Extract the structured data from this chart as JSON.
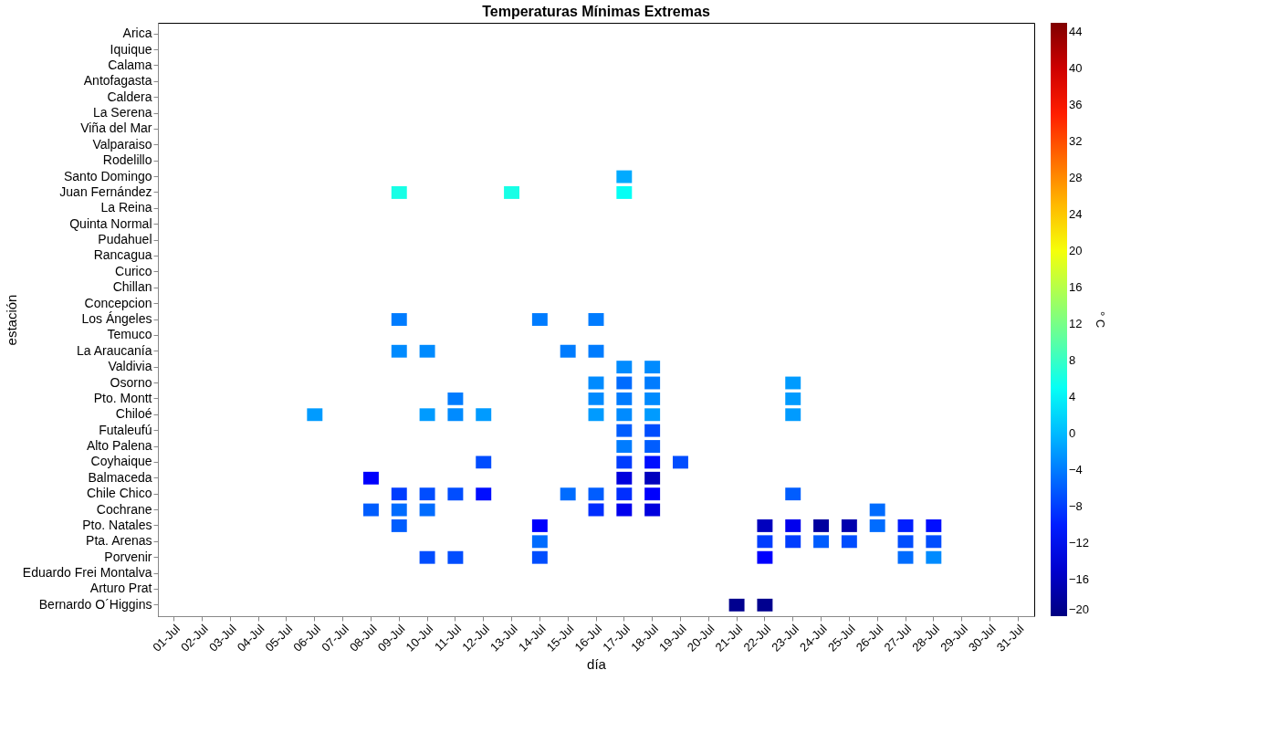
{
  "chart_data": {
    "type": "heatmap",
    "title": "Temperaturas Mínimas Extremas",
    "xlabel": "día",
    "ylabel": "estación",
    "clabel": "° C",
    "categories": [
      "01-Jul",
      "02-Jul",
      "03-Jul",
      "04-Jul",
      "05-Jul",
      "06-Jul",
      "07-Jul",
      "08-Jul",
      "09-Jul",
      "10-Jul",
      "11-Jul",
      "12-Jul",
      "13-Jul",
      "14-Jul",
      "15-Jul",
      "16-Jul",
      "17-Jul",
      "18-Jul",
      "19-Jul",
      "20-Jul",
      "21-Jul",
      "22-Jul",
      "23-Jul",
      "24-Jul",
      "25-Jul",
      "26-Jul",
      "27-Jul",
      "28-Jul",
      "29-Jul",
      "30-Jul",
      "31-Jul"
    ],
    "y_categories": [
      "Arica",
      "Iquique",
      "Calama",
      "Antofagasta",
      "Caldera",
      "La Serena",
      "Viña del Mar",
      "Valparaiso",
      "Rodelillo",
      "Santo Domingo",
      "Juan Fernández",
      "La Reina",
      "Quinta Normal",
      "Pudahuel",
      "Rancagua",
      "Curico",
      "Chillan",
      "Concepcion",
      "Los Ángeles",
      "Temuco",
      "La Araucanía",
      "Valdivia",
      "Osorno",
      "Pto. Montt",
      "Chiloé",
      "Futaleufú",
      "Alto Palena",
      "Coyhaique",
      "Balmaceda",
      "Chile Chico",
      "Cochrane",
      "Pto. Natales",
      "Pta. Arenas",
      "Porvenir",
      "Eduardo Frei Montalva",
      "Arturo Prat",
      "Bernardo O´Higgins"
    ],
    "cells": [
      [
        null,
        null,
        null,
        null,
        null,
        null,
        null,
        null,
        null,
        null,
        null,
        null,
        null,
        null,
        null,
        null,
        null,
        null,
        null,
        null,
        null,
        null,
        null,
        null,
        null,
        null,
        null,
        null,
        null,
        null,
        null
      ],
      [
        null,
        null,
        null,
        null,
        null,
        null,
        null,
        null,
        null,
        null,
        null,
        null,
        null,
        null,
        null,
        null,
        null,
        null,
        null,
        null,
        null,
        null,
        null,
        null,
        null,
        null,
        null,
        null,
        null,
        null,
        null
      ],
      [
        null,
        null,
        null,
        null,
        null,
        null,
        null,
        null,
        null,
        null,
        null,
        null,
        null,
        null,
        null,
        null,
        null,
        null,
        null,
        null,
        null,
        null,
        null,
        null,
        null,
        null,
        null,
        null,
        null,
        null,
        null
      ],
      [
        null,
        null,
        null,
        null,
        null,
        null,
        null,
        null,
        null,
        null,
        null,
        null,
        null,
        null,
        null,
        null,
        null,
        null,
        null,
        null,
        null,
        null,
        null,
        null,
        null,
        null,
        null,
        null,
        null,
        null,
        null
      ],
      [
        null,
        null,
        null,
        null,
        null,
        null,
        null,
        null,
        null,
        null,
        null,
        null,
        null,
        null,
        null,
        null,
        null,
        null,
        null,
        null,
        null,
        null,
        null,
        null,
        null,
        null,
        null,
        null,
        null,
        null,
        null
      ],
      [
        null,
        null,
        null,
        null,
        null,
        null,
        null,
        null,
        null,
        null,
        null,
        null,
        null,
        null,
        null,
        null,
        null,
        null,
        null,
        null,
        null,
        null,
        null,
        null,
        null,
        null,
        null,
        null,
        null,
        null,
        null
      ],
      [
        null,
        null,
        null,
        null,
        null,
        null,
        null,
        null,
        null,
        null,
        null,
        null,
        null,
        null,
        null,
        null,
        null,
        null,
        null,
        null,
        null,
        null,
        null,
        null,
        null,
        null,
        null,
        null,
        null,
        null,
        null
      ],
      [
        null,
        null,
        null,
        null,
        null,
        null,
        null,
        null,
        null,
        null,
        null,
        null,
        null,
        null,
        null,
        null,
        null,
        null,
        null,
        null,
        null,
        null,
        null,
        null,
        null,
        null,
        null,
        null,
        null,
        null,
        null
      ],
      [
        null,
        null,
        null,
        null,
        null,
        null,
        null,
        null,
        null,
        null,
        null,
        null,
        null,
        null,
        null,
        null,
        null,
        null,
        null,
        null,
        null,
        null,
        null,
        null,
        null,
        null,
        null,
        null,
        null,
        null,
        null
      ],
      [
        null,
        null,
        null,
        null,
        null,
        null,
        null,
        null,
        null,
        null,
        null,
        null,
        null,
        null,
        null,
        null,
        -1,
        null,
        null,
        null,
        null,
        null,
        null,
        null,
        null,
        null,
        null,
        null,
        null,
        null,
        null
      ],
      [
        null,
        null,
        null,
        null,
        null,
        null,
        null,
        null,
        6,
        null,
        null,
        null,
        6,
        null,
        null,
        null,
        5,
        null,
        null,
        null,
        null,
        null,
        null,
        null,
        null,
        null,
        null,
        null,
        null,
        null,
        null
      ],
      [
        null,
        null,
        null,
        null,
        null,
        null,
        null,
        null,
        null,
        null,
        null,
        null,
        null,
        null,
        null,
        null,
        null,
        null,
        null,
        null,
        null,
        null,
        null,
        null,
        null,
        null,
        null,
        null,
        null,
        null,
        null
      ],
      [
        null,
        null,
        null,
        null,
        null,
        null,
        null,
        null,
        null,
        null,
        null,
        null,
        null,
        null,
        null,
        null,
        null,
        null,
        null,
        null,
        null,
        null,
        null,
        null,
        null,
        null,
        null,
        null,
        null,
        null,
        null
      ],
      [
        null,
        null,
        null,
        null,
        null,
        null,
        null,
        null,
        null,
        null,
        null,
        null,
        null,
        null,
        null,
        null,
        null,
        null,
        null,
        null,
        null,
        null,
        null,
        null,
        null,
        null,
        null,
        null,
        null,
        null,
        null
      ],
      [
        null,
        null,
        null,
        null,
        null,
        null,
        null,
        null,
        null,
        null,
        null,
        null,
        null,
        null,
        null,
        null,
        null,
        null,
        null,
        null,
        null,
        null,
        null,
        null,
        null,
        null,
        null,
        null,
        null,
        null,
        null
      ],
      [
        null,
        null,
        null,
        null,
        null,
        null,
        null,
        null,
        null,
        null,
        null,
        null,
        null,
        null,
        null,
        null,
        null,
        null,
        null,
        null,
        null,
        null,
        null,
        null,
        null,
        null,
        null,
        null,
        null,
        null,
        null
      ],
      [
        null,
        null,
        null,
        null,
        null,
        null,
        null,
        null,
        null,
        null,
        null,
        null,
        null,
        null,
        null,
        null,
        null,
        null,
        null,
        null,
        null,
        null,
        null,
        null,
        null,
        null,
        null,
        null,
        null,
        null,
        null
      ],
      [
        null,
        null,
        null,
        null,
        null,
        null,
        null,
        null,
        null,
        null,
        null,
        null,
        null,
        null,
        null,
        null,
        null,
        null,
        null,
        null,
        null,
        null,
        null,
        null,
        null,
        null,
        null,
        null,
        null,
        null,
        null
      ],
      [
        null,
        null,
        null,
        null,
        null,
        null,
        null,
        null,
        -4,
        null,
        null,
        null,
        null,
        -4,
        null,
        -4,
        null,
        null,
        null,
        null,
        null,
        null,
        null,
        null,
        null,
        null,
        null,
        null,
        null,
        null,
        null
      ],
      [
        null,
        null,
        null,
        null,
        null,
        null,
        null,
        null,
        null,
        null,
        null,
        null,
        null,
        null,
        null,
        null,
        null,
        null,
        null,
        null,
        null,
        null,
        null,
        null,
        null,
        null,
        null,
        null,
        null,
        null,
        null
      ],
      [
        null,
        null,
        null,
        null,
        null,
        null,
        null,
        null,
        -3,
        -3,
        null,
        null,
        null,
        null,
        -4,
        -4,
        null,
        null,
        null,
        null,
        null,
        null,
        null,
        null,
        null,
        null,
        null,
        null,
        null,
        null,
        null
      ],
      [
        null,
        null,
        null,
        null,
        null,
        null,
        null,
        null,
        null,
        null,
        null,
        null,
        null,
        null,
        null,
        null,
        -3,
        -3,
        null,
        null,
        null,
        null,
        null,
        null,
        null,
        null,
        null,
        null,
        null,
        null,
        null
      ],
      [
        null,
        null,
        null,
        null,
        null,
        null,
        null,
        null,
        null,
        null,
        null,
        null,
        null,
        null,
        null,
        -3,
        -5,
        -4,
        null,
        null,
        null,
        null,
        -2,
        null,
        null,
        null,
        null,
        null,
        null,
        null,
        null
      ],
      [
        null,
        null,
        null,
        null,
        null,
        null,
        null,
        null,
        null,
        null,
        -4,
        null,
        null,
        null,
        null,
        -3,
        -4,
        -3,
        null,
        null,
        null,
        null,
        -2,
        null,
        null,
        null,
        null,
        null,
        null,
        null,
        null
      ],
      [
        null,
        null,
        null,
        null,
        null,
        -2,
        null,
        null,
        null,
        -2,
        -3,
        -2,
        null,
        null,
        null,
        -2,
        -3,
        -2,
        null,
        null,
        null,
        null,
        -2,
        null,
        null,
        null,
        null,
        null,
        null,
        null,
        null
      ],
      [
        null,
        null,
        null,
        null,
        null,
        null,
        null,
        null,
        null,
        null,
        null,
        null,
        null,
        null,
        null,
        null,
        -6,
        -7,
        null,
        null,
        null,
        null,
        null,
        null,
        null,
        null,
        null,
        null,
        null,
        null,
        null
      ],
      [
        null,
        null,
        null,
        null,
        null,
        null,
        null,
        null,
        null,
        null,
        null,
        null,
        null,
        null,
        null,
        null,
        -4,
        -6,
        null,
        null,
        null,
        null,
        null,
        null,
        null,
        null,
        null,
        null,
        null,
        null,
        null
      ],
      [
        null,
        null,
        null,
        null,
        null,
        null,
        null,
        null,
        null,
        null,
        null,
        -7,
        null,
        null,
        null,
        null,
        -8,
        -11,
        -7,
        null,
        null,
        null,
        null,
        null,
        null,
        null,
        null,
        null,
        null,
        null,
        null
      ],
      [
        null,
        null,
        null,
        null,
        null,
        null,
        null,
        -12,
        null,
        null,
        null,
        null,
        null,
        null,
        null,
        null,
        -14,
        -16,
        null,
        null,
        null,
        null,
        null,
        null,
        null,
        null,
        null,
        null,
        null,
        null,
        null
      ],
      [
        null,
        null,
        null,
        null,
        null,
        null,
        null,
        null,
        -8,
        -7,
        -7,
        -11,
        null,
        null,
        -5,
        -6,
        -9,
        -12,
        null,
        null,
        null,
        null,
        -6,
        null,
        null,
        null,
        null,
        null,
        null,
        null,
        null
      ],
      [
        null,
        null,
        null,
        null,
        null,
        null,
        null,
        -6,
        -5,
        -5,
        null,
        null,
        null,
        null,
        null,
        -9,
        -13,
        -14,
        null,
        null,
        null,
        null,
        null,
        null,
        null,
        -5,
        null,
        null,
        null,
        null,
        null
      ],
      [
        null,
        null,
        null,
        null,
        null,
        null,
        null,
        null,
        -6,
        null,
        null,
        null,
        null,
        -12,
        null,
        null,
        null,
        null,
        null,
        null,
        null,
        -16,
        -13,
        -18,
        -17,
        -5,
        -10,
        -11,
        null,
        null,
        null
      ],
      [
        null,
        null,
        null,
        null,
        null,
        null,
        null,
        null,
        null,
        null,
        null,
        null,
        null,
        -5,
        null,
        null,
        null,
        null,
        null,
        null,
        null,
        -8,
        -8,
        -6,
        -7,
        null,
        -7,
        -7,
        null,
        null,
        null
      ],
      [
        null,
        null,
        null,
        null,
        null,
        null,
        null,
        null,
        null,
        -7,
        -7,
        null,
        null,
        -7,
        null,
        null,
        null,
        null,
        null,
        null,
        null,
        -12,
        null,
        null,
        null,
        null,
        -5,
        -3,
        null,
        null,
        null
      ],
      [
        null,
        null,
        null,
        null,
        null,
        null,
        null,
        null,
        null,
        null,
        null,
        null,
        null,
        null,
        null,
        null,
        null,
        null,
        null,
        null,
        null,
        null,
        null,
        null,
        null,
        null,
        null,
        null,
        null,
        null,
        null
      ],
      [
        null,
        null,
        null,
        null,
        null,
        null,
        null,
        null,
        null,
        null,
        null,
        null,
        null,
        null,
        null,
        null,
        null,
        null,
        null,
        null,
        null,
        null,
        null,
        null,
        null,
        null,
        null,
        null,
        null,
        null,
        null
      ],
      [
        null,
        null,
        null,
        null,
        null,
        null,
        null,
        null,
        null,
        null,
        null,
        null,
        null,
        null,
        null,
        null,
        null,
        null,
        null,
        null,
        -19,
        -19,
        null,
        null,
        null,
        null,
        null,
        null,
        null,
        null,
        null
      ]
    ],
    "clim": [
      -20,
      45
    ],
    "cticks": [
      -20,
      -16,
      -12,
      -8,
      -4,
      0,
      4,
      8,
      12,
      16,
      20,
      24,
      28,
      32,
      36,
      40,
      44
    ]
  }
}
